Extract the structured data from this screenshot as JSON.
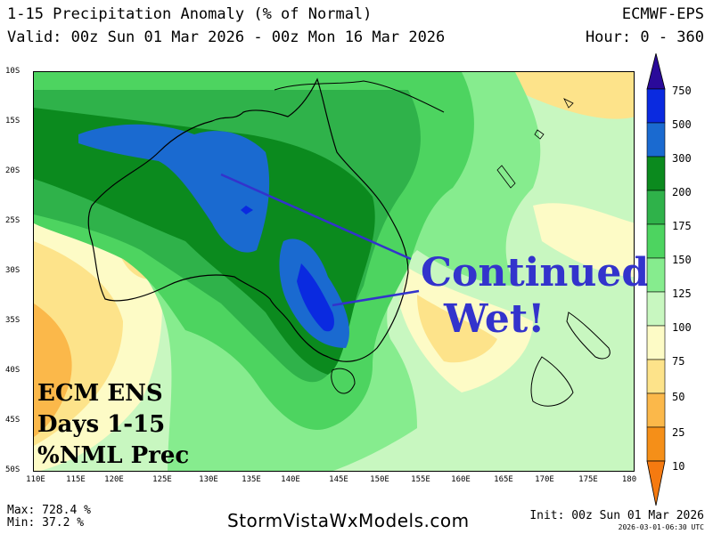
{
  "header": {
    "title": "1-15 Precipitation Anomaly (% of Normal)",
    "valid": "Valid: 00z Sun 01 Mar 2026 - 00z Mon 16 Mar 2026",
    "model": "ECMWF-EPS",
    "hour": "Hour: 0 - 360"
  },
  "axes": {
    "lat_labels": [
      "10S",
      "15S",
      "20S",
      "25S",
      "30S",
      "35S",
      "40S",
      "45S",
      "50S"
    ],
    "lon_labels": [
      "110E",
      "115E",
      "120E",
      "125E",
      "130E",
      "135E",
      "140E",
      "145E",
      "150E",
      "155E",
      "160E",
      "165E",
      "170E",
      "175E",
      "180"
    ]
  },
  "colorbar": {
    "labels": [
      "750",
      "500",
      "300",
      "200",
      "175",
      "150",
      "125",
      "100",
      "75",
      "50",
      "25",
      "10"
    ],
    "colors": [
      "#2a0a9a",
      "#0a2ae0",
      "#1a6ad0",
      "#0b8a1e",
      "#2fb24a",
      "#4dd460",
      "#86ec8e",
      "#c8f7c0",
      "#fdfbc6",
      "#fde38a",
      "#fbb84a",
      "#f58f18",
      "#f57a10"
    ]
  },
  "annotation": {
    "line1": "Continued",
    "line2": "Wet!",
    "color": "#3333cc"
  },
  "inset_label": {
    "line1": "ECM ENS",
    "line2": "Days 1-15",
    "line3": "%NML Prec"
  },
  "footer": {
    "max": "Max: 728.4 %",
    "min": "Min: 37.2 %",
    "site": "StormVistaWxModels.com",
    "init": "Init: 00z Sun 01 Mar 2026",
    "stamp": "2026-03-01-06:30 UTC"
  }
}
